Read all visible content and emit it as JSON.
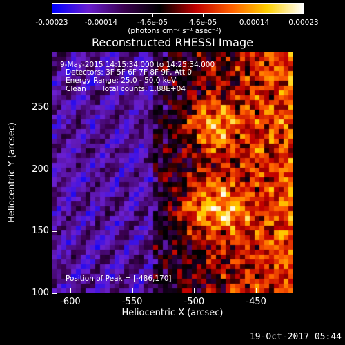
{
  "chart_data": {
    "type": "heatmap",
    "title": "Reconstructed RHESSI Image",
    "xlabel": "Heliocentric X (arcsec)",
    "ylabel": "Heliocentric Y (arcsec)",
    "xlim": [
      -615,
      -420
    ],
    "ylim": [
      100,
      295
    ],
    "x_ticks": [
      "-600",
      "-550",
      "-500",
      "-450"
    ],
    "x_tick_values": [
      -600,
      -550,
      -500,
      -450
    ],
    "y_ticks": [
      "100",
      "150",
      "200",
      "250"
    ],
    "y_tick_values": [
      100,
      150,
      200,
      250
    ],
    "colorbar": {
      "min": -0.00023,
      "max": 0.00023,
      "tick_labels": [
        "-0.00023",
        "-0.00014",
        "-4.6e-05",
        "4.6e-05",
        "0.00014",
        "0.00023"
      ],
      "tick_values": [
        -0.00023,
        -0.00014,
        -4.6e-05,
        4.6e-05,
        0.00014,
        0.00023
      ],
      "unit_label": "(photons cm⁻² s⁻¹ asec⁻²)",
      "colors": [
        "#0000ff",
        "#6a1fd0",
        "#3a0050",
        "#000000",
        "#c00000",
        "#ff6000",
        "#ffd000",
        "#ffffff"
      ]
    },
    "annotations": {
      "time_range": "9-May-2015 14:15:34.000 to 14:25:34.000",
      "detectors": "Detectors: 3F 5F 6F 7F 8F 9F, Att 0",
      "energy": "Energy Range: 25.0 - 50.0 keV",
      "clean": "Clean",
      "total_counts": "Total counts: 1.88E+04",
      "peak": "Position of Peak = [-486,170]"
    },
    "peak_position": [
      -486,
      170
    ]
  },
  "footer": {
    "date": "19-Oct-2017 05:44"
  }
}
